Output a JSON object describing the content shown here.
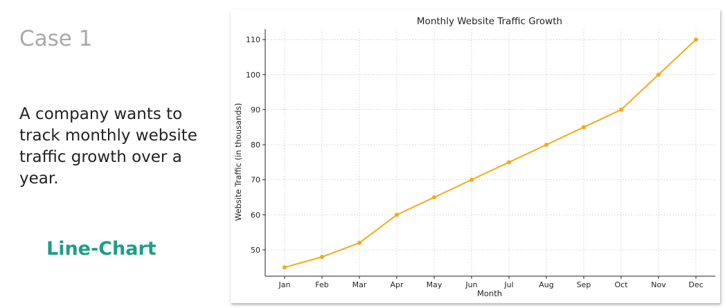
{
  "slide": {
    "case_title": "Case 1",
    "description": "A company wants to track monthly website traffic growth over a year.",
    "chart_type_label": "Line-Chart",
    "accent_color": "#1f9e86"
  },
  "chart_data": {
    "type": "line",
    "title": "Monthly Website Traffic Growth",
    "xlabel": "Month",
    "ylabel": "Website Traffic (in thousands)",
    "categories": [
      "Jan",
      "Feb",
      "Mar",
      "Apr",
      "May",
      "Jun",
      "Jul",
      "Aug",
      "Sep",
      "Oct",
      "Nov",
      "Dec"
    ],
    "series": [
      {
        "values": [
          45,
          48,
          52,
          60,
          65,
          70,
          75,
          80,
          85,
          90,
          100,
          110
        ],
        "color": "#f5a816"
      }
    ],
    "ylim": [
      42.5,
      113
    ],
    "yticks": [
      50,
      60,
      70,
      80,
      90,
      100,
      110
    ],
    "grid": true
  }
}
